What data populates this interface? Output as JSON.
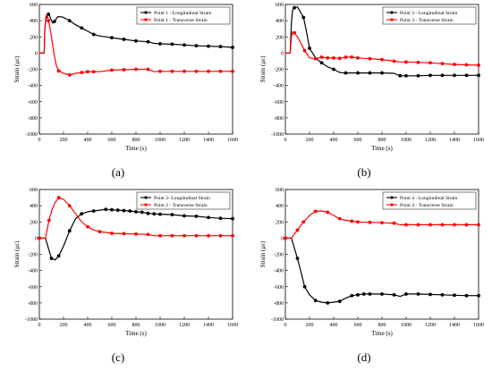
{
  "colors": {
    "longitudinal": "#000000",
    "transverse": "#ff0000"
  },
  "chart_data": [
    {
      "type": "line",
      "panel_label": "(a)",
      "xlabel": "Time (s)",
      "ylabel": "Strain (με)",
      "xlim": [
        0,
        1600
      ],
      "ylim": [
        -1000,
        600
      ],
      "xticks": [
        0,
        200,
        400,
        600,
        800,
        1000,
        1200,
        1400,
        1600
      ],
      "yticks": [
        -1000,
        -800,
        -600,
        -400,
        -200,
        0,
        200,
        400,
        600
      ],
      "legend_position": "top-right",
      "grid": false,
      "series": [
        {
          "name": "Point 1 - Longitudinal Strain",
          "color_key": "longitudinal",
          "x": [
            0,
            40,
            45,
            55,
            65,
            75,
            85,
            95,
            110,
            125,
            150,
            170,
            200,
            250,
            300,
            350,
            400,
            450,
            500,
            600,
            700,
            800,
            900,
            950,
            1000,
            1100,
            1200,
            1300,
            1400,
            1500,
            1600
          ],
          "y": [
            0,
            0,
            300,
            420,
            470,
            480,
            460,
            420,
            370,
            390,
            445,
            450,
            440,
            400,
            350,
            310,
            270,
            230,
            210,
            190,
            170,
            150,
            140,
            120,
            115,
            110,
            100,
            90,
            85,
            80,
            70
          ],
          "marked": [
            false,
            false,
            false,
            false,
            false,
            true,
            false,
            false,
            false,
            true,
            false,
            false,
            false,
            true,
            false,
            true,
            false,
            true,
            false,
            true,
            true,
            true,
            true,
            false,
            true,
            true,
            true,
            true,
            true,
            true,
            true
          ]
        },
        {
          "name": "Point 1 - Transverse Strain",
          "color_key": "transverse",
          "x": [
            0,
            40,
            45,
            55,
            65,
            75,
            85,
            100,
            120,
            140,
            160,
            200,
            250,
            300,
            350,
            400,
            450,
            500,
            600,
            700,
            800,
            900,
            950,
            1000,
            1100,
            1200,
            1300,
            1400,
            1500,
            1600
          ],
          "y": [
            0,
            0,
            300,
            460,
            470,
            400,
            330,
            200,
            0,
            -150,
            -220,
            -250,
            -270,
            -250,
            -240,
            -230,
            -230,
            -230,
            -210,
            -205,
            -200,
            -200,
            -230,
            -225,
            -225,
            -225,
            -225,
            -225,
            -225,
            -225
          ],
          "marked": [
            false,
            false,
            false,
            false,
            false,
            true,
            false,
            false,
            false,
            false,
            true,
            false,
            true,
            false,
            true,
            true,
            true,
            false,
            true,
            true,
            true,
            true,
            false,
            true,
            true,
            true,
            true,
            true,
            true,
            true
          ]
        }
      ]
    },
    {
      "type": "line",
      "panel_label": "(b)",
      "xlabel": "Time (s)",
      "ylabel": "Strain (με)",
      "xlim": [
        0,
        1600
      ],
      "ylim": [
        -1000,
        600
      ],
      "xticks": [
        0,
        200,
        400,
        600,
        800,
        1000,
        1200,
        1400,
        1600
      ],
      "yticks": [
        -1000,
        -800,
        -600,
        -400,
        -200,
        0,
        200,
        400,
        600
      ],
      "legend_position": "top-right",
      "grid": false,
      "series": [
        {
          "name": "Point 3 - Longitudinal Strain",
          "color_key": "longitudinal",
          "x": [
            0,
            40,
            50,
            60,
            75,
            100,
            120,
            150,
            170,
            200,
            250,
            300,
            350,
            400,
            450,
            500,
            550,
            600,
            700,
            800,
            900,
            950,
            1000,
            1100,
            1200,
            1300,
            1400,
            1500,
            1600
          ],
          "y": [
            0,
            0,
            380,
            530,
            560,
            570,
            520,
            440,
            300,
            60,
            -60,
            -120,
            -170,
            -200,
            -240,
            -245,
            -245,
            -245,
            -245,
            -245,
            -250,
            -280,
            -280,
            -280,
            -275,
            -275,
            -275,
            -275,
            -275
          ],
          "marked": [
            false,
            false,
            false,
            false,
            true,
            false,
            false,
            true,
            false,
            true,
            false,
            true,
            false,
            true,
            false,
            true,
            false,
            true,
            true,
            true,
            false,
            true,
            true,
            true,
            true,
            true,
            true,
            true,
            true
          ]
        },
        {
          "name": "Point 3 - Transverse Strain",
          "color_key": "transverse",
          "x": [
            0,
            40,
            50,
            60,
            75,
            100,
            130,
            160,
            200,
            250,
            300,
            350,
            400,
            450,
            500,
            550,
            600,
            700,
            800,
            900,
            950,
            1000,
            1100,
            1200,
            1300,
            1400,
            1500,
            1600
          ],
          "y": [
            0,
            0,
            200,
            260,
            250,
            200,
            120,
            30,
            -60,
            -70,
            -50,
            -60,
            -60,
            -65,
            -50,
            -50,
            -60,
            -70,
            -80,
            -100,
            -110,
            -110,
            -115,
            -120,
            -130,
            -140,
            -145,
            -150
          ],
          "marked": [
            false,
            false,
            false,
            false,
            true,
            false,
            false,
            true,
            false,
            true,
            true,
            true,
            true,
            true,
            true,
            true,
            true,
            true,
            true,
            true,
            false,
            true,
            true,
            true,
            true,
            true,
            true,
            true
          ]
        }
      ]
    },
    {
      "type": "line",
      "panel_label": "(c)",
      "xlabel": "Time (s)",
      "ylabel": "Strain (με)",
      "xlim": [
        0,
        1600
      ],
      "ylim": [
        -1000,
        600
      ],
      "xticks": [
        0,
        200,
        400,
        600,
        800,
        1000,
        1200,
        1400,
        1600
      ],
      "yticks": [
        -1000,
        -800,
        -600,
        -400,
        -200,
        0,
        200,
        400,
        600
      ],
      "legend_position": "top-right",
      "grid": false,
      "series": [
        {
          "name": "Point 2- Longitudinal Strain",
          "color_key": "longitudinal",
          "x": [
            0,
            50,
            80,
            100,
            130,
            160,
            200,
            250,
            300,
            350,
            400,
            450,
            500,
            550,
            600,
            650,
            700,
            750,
            800,
            850,
            900,
            950,
            1000,
            1100,
            1200,
            1300,
            1400,
            1500,
            1600
          ],
          "y": [
            0,
            0,
            -150,
            -250,
            -270,
            -220,
            -100,
            90,
            240,
            300,
            325,
            335,
            345,
            355,
            350,
            345,
            340,
            335,
            325,
            320,
            305,
            300,
            295,
            290,
            275,
            270,
            255,
            245,
            240
          ],
          "marked": [
            true,
            false,
            false,
            true,
            false,
            true,
            false,
            true,
            false,
            true,
            false,
            true,
            false,
            true,
            true,
            true,
            true,
            true,
            true,
            true,
            true,
            true,
            true,
            true,
            true,
            true,
            true,
            true,
            true
          ]
        },
        {
          "name": "Point 2 - Transverse Strain",
          "color_key": "transverse",
          "x": [
            0,
            50,
            80,
            100,
            130,
            160,
            200,
            250,
            300,
            350,
            400,
            450,
            500,
            550,
            600,
            700,
            800,
            900,
            950,
            1000,
            1100,
            1200,
            1300,
            1400,
            1500,
            1600
          ],
          "y": [
            0,
            0,
            220,
            330,
            440,
            500,
            480,
            400,
            300,
            200,
            140,
            100,
            80,
            70,
            60,
            55,
            50,
            45,
            30,
            30,
            30,
            30,
            30,
            30,
            30,
            30
          ],
          "marked": [
            true,
            false,
            true,
            false,
            false,
            true,
            false,
            true,
            false,
            false,
            true,
            false,
            true,
            false,
            true,
            true,
            true,
            true,
            false,
            true,
            true,
            true,
            true,
            true,
            true,
            true
          ]
        }
      ]
    },
    {
      "type": "line",
      "panel_label": "(d)",
      "xlabel": "Time (s)",
      "ylabel": "Strain (με)",
      "xlim": [
        0,
        1600
      ],
      "ylim": [
        -1000,
        600
      ],
      "xticks": [
        0,
        200,
        400,
        600,
        800,
        1000,
        1200,
        1400,
        1600
      ],
      "yticks": [
        -1000,
        -800,
        -600,
        -400,
        -200,
        0,
        200,
        400,
        600
      ],
      "legend_position": "top-right",
      "grid": false,
      "series": [
        {
          "name": "Point 4 - Longitudinal Strain",
          "color_key": "longitudinal",
          "x": [
            0,
            50,
            80,
            100,
            130,
            160,
            200,
            250,
            300,
            350,
            400,
            450,
            500,
            550,
            600,
            650,
            700,
            800,
            900,
            950,
            1000,
            1100,
            1200,
            1300,
            1400,
            1500,
            1600
          ],
          "y": [
            0,
            0,
            -150,
            -250,
            -420,
            -600,
            -700,
            -770,
            -790,
            -800,
            -790,
            -780,
            -740,
            -710,
            -700,
            -690,
            -690,
            -690,
            -700,
            -720,
            -690,
            -690,
            -695,
            -700,
            -705,
            -710,
            -710
          ],
          "marked": [
            true,
            false,
            false,
            true,
            false,
            true,
            false,
            true,
            false,
            true,
            false,
            true,
            false,
            true,
            true,
            true,
            true,
            true,
            true,
            false,
            true,
            true,
            true,
            true,
            true,
            true,
            true
          ]
        },
        {
          "name": "Point 4 - Transverse Strain",
          "color_key": "transverse",
          "x": [
            0,
            50,
            80,
            100,
            150,
            200,
            250,
            300,
            350,
            400,
            450,
            500,
            550,
            600,
            700,
            800,
            900,
            950,
            1000,
            1100,
            1200,
            1300,
            1400,
            1500,
            1600
          ],
          "y": [
            0,
            0,
            60,
            100,
            200,
            280,
            330,
            335,
            320,
            280,
            240,
            220,
            210,
            200,
            195,
            190,
            185,
            165,
            165,
            165,
            165,
            165,
            165,
            165,
            165
          ],
          "marked": [
            true,
            false,
            false,
            true,
            true,
            false,
            true,
            false,
            true,
            false,
            true,
            false,
            true,
            true,
            true,
            true,
            true,
            false,
            true,
            true,
            true,
            true,
            true,
            true,
            true
          ]
        }
      ]
    }
  ]
}
